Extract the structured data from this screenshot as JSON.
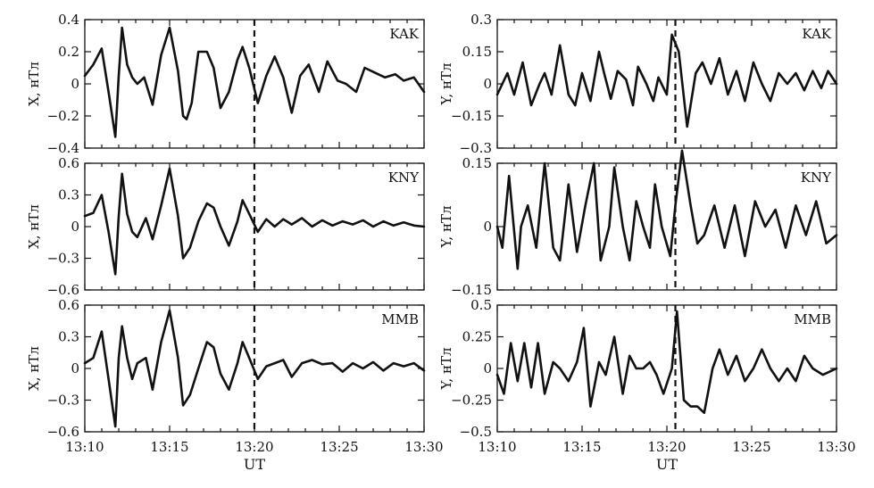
{
  "chart_data": [
    {
      "type": "line",
      "station": "KAK",
      "ylabel": "X, нТл",
      "ylim": [
        -0.4,
        0.4
      ],
      "yticks": [
        -0.4,
        -0.2,
        0,
        0.2,
        0.4
      ],
      "yticklabels": [
        "−0.4",
        "−0.2",
        "0",
        "0.2",
        "0.4"
      ],
      "xlim": [
        13.1667,
        13.5
      ],
      "event_time": 13.3333,
      "show_xticklabels": false,
      "x": [
        13.1667,
        13.175,
        13.1833,
        13.19,
        13.1967,
        13.2,
        13.2033,
        13.2083,
        13.2133,
        13.2183,
        13.225,
        13.2333,
        13.2417,
        13.25,
        13.2583,
        13.2633,
        13.2667,
        13.2717,
        13.2783,
        13.2867,
        13.2933,
        13.3,
        13.3083,
        13.3167,
        13.3217,
        13.3283,
        13.3367,
        13.345,
        13.3533,
        13.3617,
        13.37,
        13.3783,
        13.3867,
        13.3967,
        13.405,
        13.415,
        13.4233,
        13.4333,
        13.4417,
        13.4517,
        13.4617,
        13.4717,
        13.48,
        13.49,
        13.5
      ],
      "y": [
        0.05,
        0.12,
        0.22,
        -0.05,
        -0.33,
        0.05,
        0.35,
        0.12,
        0.04,
        0.0,
        0.04,
        -0.13,
        0.18,
        0.35,
        0.08,
        -0.2,
        -0.22,
        -0.12,
        0.2,
        0.2,
        0.1,
        -0.15,
        -0.05,
        0.15,
        0.23,
        0.1,
        -0.12,
        0.05,
        0.17,
        0.04,
        -0.18,
        0.05,
        0.12,
        -0.05,
        0.14,
        0.02,
        0.0,
        -0.05,
        0.1,
        0.07,
        0.04,
        0.06,
        0.02,
        0.04,
        -0.05
      ]
    },
    {
      "type": "line",
      "station": "KNY",
      "ylabel": "X, нТл",
      "ylim": [
        -0.6,
        0.6
      ],
      "yticks": [
        -0.6,
        -0.3,
        0,
        0.3,
        0.6
      ],
      "yticklabels": [
        "−0.6",
        "−0.3",
        "0",
        "0.3",
        "0.6"
      ],
      "xlim": [
        13.1667,
        13.5
      ],
      "event_time": 13.3333,
      "show_xticklabels": false,
      "x": [
        13.1667,
        13.175,
        13.1833,
        13.19,
        13.1967,
        13.2,
        13.2033,
        13.2083,
        13.2133,
        13.2183,
        13.2267,
        13.2333,
        13.2417,
        13.25,
        13.2583,
        13.2633,
        13.27,
        13.2783,
        13.2867,
        13.2933,
        13.3,
        13.3083,
        13.3167,
        13.3217,
        13.3283,
        13.3367,
        13.345,
        13.3533,
        13.3617,
        13.37,
        13.38,
        13.39,
        13.4,
        13.41,
        13.42,
        13.43,
        13.44,
        13.45,
        13.46,
        13.47,
        13.48,
        13.49,
        13.5
      ],
      "y": [
        0.1,
        0.13,
        0.3,
        -0.05,
        -0.45,
        0.1,
        0.5,
        0.12,
        -0.05,
        -0.1,
        0.08,
        -0.12,
        0.2,
        0.55,
        0.1,
        -0.3,
        -0.2,
        0.05,
        0.22,
        0.18,
        0.0,
        -0.18,
        0.05,
        0.25,
        0.12,
        -0.05,
        0.07,
        0.0,
        0.07,
        0.02,
        0.08,
        0.0,
        0.06,
        0.01,
        0.05,
        0.02,
        0.06,
        0.0,
        0.05,
        0.01,
        0.04,
        0.01,
        0.0
      ]
    },
    {
      "type": "line",
      "station": "MMB",
      "ylabel": "X, нТл",
      "ylim": [
        -0.6,
        0.6
      ],
      "yticks": [
        -0.6,
        -0.3,
        0,
        0.3,
        0.6
      ],
      "yticklabels": [
        "−0.6",
        "−0.3",
        "0",
        "0.3",
        "0.6"
      ],
      "xlim": [
        13.1667,
        13.5
      ],
      "event_time": 13.3333,
      "show_xticklabels": true,
      "xticks": [
        13.1667,
        13.25,
        13.3333,
        13.4167,
        13.5
      ],
      "xticklabels": [
        "13:10",
        "13:15",
        "13:20",
        "13:25",
        "13:30"
      ],
      "xlabel": "UT",
      "x": [
        13.1667,
        13.175,
        13.1833,
        13.19,
        13.1967,
        13.2,
        13.2033,
        13.2083,
        13.2133,
        13.2183,
        13.2267,
        13.2333,
        13.2417,
        13.25,
        13.2583,
        13.2633,
        13.27,
        13.2783,
        13.2867,
        13.2933,
        13.3,
        13.3083,
        13.3167,
        13.3217,
        13.3283,
        13.3367,
        13.345,
        13.3533,
        13.3617,
        13.37,
        13.38,
        13.39,
        13.4,
        13.41,
        13.42,
        13.43,
        13.44,
        13.45,
        13.46,
        13.47,
        13.48,
        13.49,
        13.5
      ],
      "y": [
        0.05,
        0.1,
        0.35,
        -0.1,
        -0.55,
        0.1,
        0.4,
        0.1,
        -0.1,
        0.05,
        0.1,
        -0.2,
        0.25,
        0.55,
        0.1,
        -0.35,
        -0.25,
        0.0,
        0.25,
        0.2,
        -0.05,
        -0.2,
        0.05,
        0.25,
        0.1,
        -0.1,
        0.02,
        0.05,
        0.08,
        -0.08,
        0.05,
        0.08,
        0.04,
        0.05,
        -0.03,
        0.05,
        0.0,
        0.06,
        -0.02,
        0.05,
        0.02,
        0.05,
        -0.02
      ]
    },
    {
      "type": "line",
      "station": "KAK",
      "ylabel": "Y, нТл",
      "ylim": [
        -0.3,
        0.3
      ],
      "yticks": [
        -0.3,
        -0.15,
        0,
        0.15,
        0.3
      ],
      "yticklabels": [
        "−0.3",
        "−0.15",
        "0",
        "0.15",
        "0.3"
      ],
      "xlim": [
        13.1667,
        13.5
      ],
      "event_time": 13.3417,
      "show_xticklabels": false,
      "x": [
        13.1667,
        13.1767,
        13.1833,
        13.1917,
        13.2,
        13.2083,
        13.2133,
        13.22,
        13.2283,
        13.2367,
        13.2433,
        13.25,
        13.2583,
        13.2667,
        13.2717,
        13.2783,
        13.285,
        13.2933,
        13.3,
        13.305,
        13.3133,
        13.32,
        13.325,
        13.3333,
        13.3383,
        13.345,
        13.3533,
        13.3617,
        13.3683,
        13.3767,
        13.385,
        13.3933,
        13.4017,
        13.41,
        13.4183,
        13.4267,
        13.435,
        13.4433,
        13.4517,
        13.46,
        13.4683,
        13.4767,
        13.485,
        13.4917,
        13.5
      ],
      "y": [
        -0.05,
        0.05,
        -0.05,
        0.1,
        -0.1,
        0.0,
        0.05,
        -0.05,
        0.18,
        -0.05,
        -0.1,
        0.05,
        -0.08,
        0.15,
        0.05,
        -0.07,
        0.06,
        0.02,
        -0.1,
        0.08,
        0.0,
        -0.08,
        0.03,
        -0.05,
        0.23,
        0.15,
        -0.2,
        0.05,
        0.1,
        0.0,
        0.12,
        -0.05,
        0.06,
        -0.08,
        0.1,
        0.0,
        -0.08,
        0.05,
        0.0,
        0.05,
        -0.03,
        0.06,
        -0.02,
        0.06,
        0.0
      ]
    },
    {
      "type": "line",
      "station": "KNY",
      "ylabel": "Y, нТл",
      "ylim": [
        -0.15,
        0.15
      ],
      "yticks": [
        -0.15,
        0,
        0.15
      ],
      "yticklabels": [
        "−0.15",
        "0",
        "0.15"
      ],
      "xlim": [
        13.1667,
        13.5
      ],
      "event_time": 13.3417,
      "show_xticklabels": false,
      "x": [
        13.1667,
        13.1717,
        13.1783,
        13.1867,
        13.19,
        13.1967,
        13.205,
        13.2133,
        13.2217,
        13.2283,
        13.2367,
        13.245,
        13.2533,
        13.2617,
        13.2683,
        13.2767,
        13.2817,
        13.29,
        13.2967,
        13.3033,
        13.31,
        13.3167,
        13.3217,
        13.3283,
        13.3367,
        13.3417,
        13.3483,
        13.3567,
        13.3633,
        13.37,
        13.38,
        13.39,
        13.4,
        13.41,
        13.42,
        13.43,
        13.44,
        13.45,
        13.46,
        13.47,
        13.48,
        13.49,
        13.5
      ],
      "y": [
        0.0,
        -0.05,
        0.12,
        -0.1,
        0.0,
        0.05,
        -0.05,
        0.15,
        -0.05,
        -0.08,
        0.1,
        -0.06,
        0.05,
        0.15,
        -0.08,
        0.0,
        0.14,
        0.0,
        -0.08,
        0.06,
        0.0,
        -0.05,
        0.1,
        0.0,
        -0.07,
        0.05,
        0.18,
        0.05,
        -0.04,
        -0.02,
        0.05,
        -0.05,
        0.05,
        -0.07,
        0.06,
        0.0,
        0.04,
        -0.05,
        0.05,
        -0.02,
        0.06,
        -0.04,
        -0.02
      ]
    },
    {
      "type": "line",
      "station": "MMB",
      "ylabel": "Y, нТл",
      "ylim": [
        -0.5,
        0.5
      ],
      "yticks": [
        -0.5,
        -0.25,
        0,
        0.25,
        0.5
      ],
      "yticklabels": [
        "−0.5",
        "−0.25",
        "0",
        "0.25",
        "0.5"
      ],
      "xlim": [
        13.1667,
        13.5
      ],
      "event_time": 13.3417,
      "show_xticklabels": true,
      "xticks": [
        13.1667,
        13.25,
        13.3333,
        13.4167,
        13.5
      ],
      "xticklabels": [
        "13:10",
        "13:15",
        "13:20",
        "13:25",
        "13:30"
      ],
      "xlabel": "UT",
      "x": [
        13.1667,
        13.1733,
        13.18,
        13.1867,
        13.1933,
        13.2,
        13.2067,
        13.2133,
        13.2217,
        13.2283,
        13.2367,
        13.245,
        13.2517,
        13.2583,
        13.2667,
        13.2733,
        13.2817,
        13.29,
        13.2967,
        13.3033,
        13.31,
        13.3167,
        13.3233,
        13.33,
        13.3383,
        13.3433,
        13.35,
        13.3567,
        13.3633,
        13.37,
        13.3783,
        13.385,
        13.3933,
        13.4017,
        13.41,
        13.4183,
        13.4267,
        13.435,
        13.4433,
        13.4517,
        13.46,
        13.4683,
        13.4767,
        13.4867,
        13.5
      ],
      "y": [
        -0.05,
        -0.2,
        0.2,
        -0.1,
        0.2,
        -0.15,
        0.2,
        -0.2,
        0.05,
        0.0,
        -0.1,
        0.05,
        0.32,
        -0.3,
        0.05,
        -0.05,
        0.25,
        -0.2,
        0.1,
        0.0,
        0.0,
        0.05,
        -0.05,
        -0.2,
        0.0,
        0.45,
        -0.25,
        -0.3,
        -0.3,
        -0.35,
        0.0,
        0.15,
        -0.05,
        0.1,
        -0.1,
        0.0,
        0.15,
        0.0,
        -0.1,
        0.0,
        -0.1,
        0.1,
        0.0,
        -0.05,
        0.0
      ]
    }
  ]
}
